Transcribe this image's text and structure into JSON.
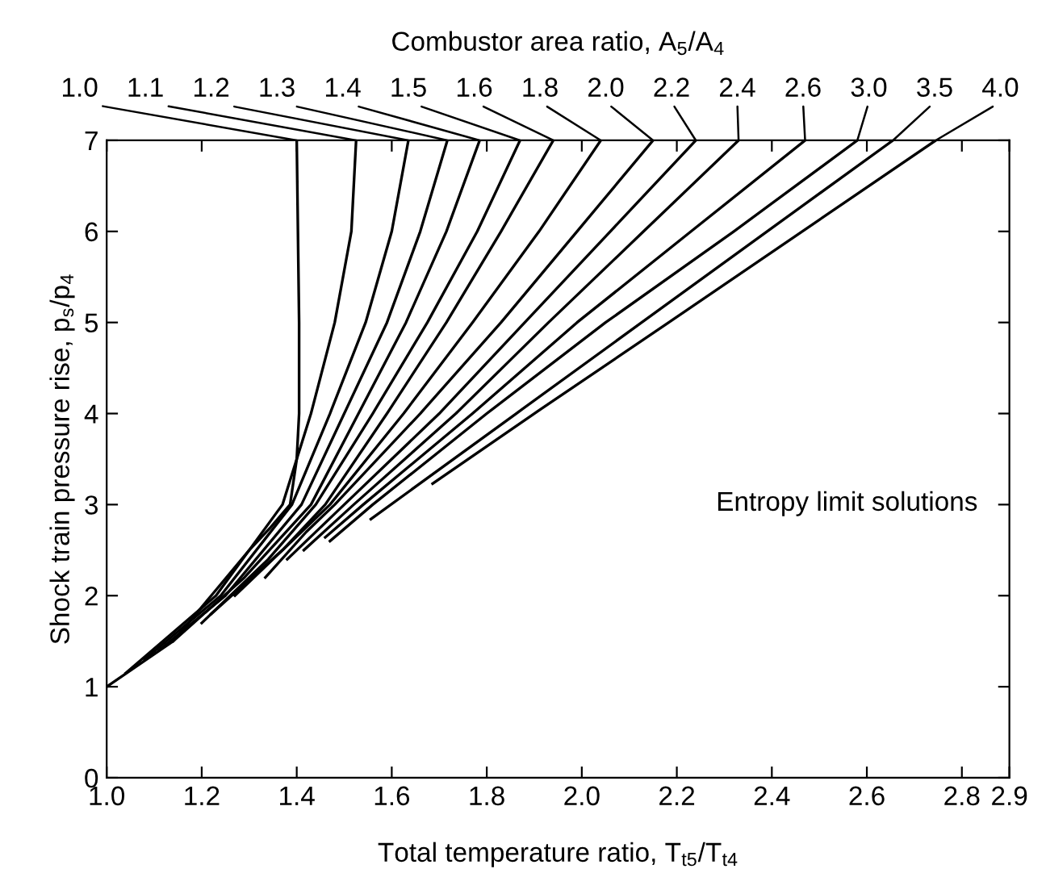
{
  "chart_data": {
    "type": "line",
    "title": "Combustor area ratio, A$_{5}$/A$_{4}$",
    "xlabel": "Total temperature ratio, T$_{t5}$/T$_{t4}$",
    "ylabel": "Shock train pressure rise, p$_{s}$/p$_{4}$",
    "annotations": [
      "Entropy limit solutions"
    ],
    "xlim": [
      1.0,
      2.9
    ],
    "xticks": [
      {
        "value": 1.0,
        "label": "1.0"
      },
      {
        "value": 1.2,
        "label": "1.2"
      },
      {
        "value": 1.4,
        "label": "1.4"
      },
      {
        "value": 1.6,
        "label": "1.6"
      },
      {
        "value": 1.8,
        "label": "1.8"
      },
      {
        "value": 2.0,
        "label": "2.0"
      },
      {
        "value": 2.2,
        "label": "2.2"
      },
      {
        "value": 2.4,
        "label": "2.4"
      },
      {
        "value": 2.6,
        "label": "2.6"
      },
      {
        "value": 2.8,
        "label": "2.8"
      },
      2.9
    ],
    "ylim": [
      0,
      7
    ],
    "yticks": [
      0,
      1,
      2,
      3,
      4,
      5,
      6,
      7
    ],
    "grid": false,
    "legend": false,
    "marker": "none",
    "line_style": "solid",
    "series": [
      {
        "name": "1.0",
        "color": "#000000",
        "x": [
          1.0,
          1.14,
          1.22,
          1.3,
          1.345,
          1.386,
          1.4,
          1.405,
          1.405,
          1.4
        ],
        "values": [
          1,
          1.5,
          2,
          2.5,
          2.75,
          3,
          3.5,
          4,
          5,
          7
        ]
      },
      {
        "name": "1.1",
        "color": "#000000",
        "x": [
          1.04,
          1.23,
          1.37,
          1.43,
          1.48,
          1.515,
          1.525
        ],
        "values": [
          1.15,
          2,
          3,
          4,
          5,
          6,
          7
        ]
      },
      {
        "name": "1.2",
        "color": "#000000",
        "x": [
          1.08,
          1.24,
          1.39,
          1.47,
          1.545,
          1.6,
          1.635
        ],
        "values": [
          1.3,
          2,
          3,
          4,
          5,
          6,
          7
        ]
      },
      {
        "name": "1.3",
        "color": "#000000",
        "x": [
          1.11,
          1.25,
          1.41,
          1.5,
          1.59,
          1.66,
          1.717
        ],
        "values": [
          1.4,
          2,
          3,
          4,
          5,
          6,
          7
        ]
      },
      {
        "name": "1.4",
        "color": "#000000",
        "x": [
          1.14,
          1.29,
          1.43,
          1.53,
          1.63,
          1.715,
          1.785
        ],
        "values": [
          1.5,
          2.2,
          3,
          4,
          5,
          6,
          7
        ]
      },
      {
        "name": "1.5",
        "color": "#000000",
        "x": [
          1.2,
          1.34,
          1.44,
          1.56,
          1.675,
          1.78,
          1.87
        ],
        "values": [
          1.7,
          2.4,
          3,
          4,
          5,
          6,
          7
        ]
      },
      {
        "name": "1.6",
        "color": "#000000",
        "x": [
          1.22,
          1.37,
          1.46,
          1.59,
          1.715,
          1.83,
          1.94
        ],
        "values": [
          1.8,
          2.5,
          3,
          4,
          5,
          6,
          7
        ]
      },
      {
        "name": "1.8",
        "color": "#000000",
        "x": [
          1.27,
          1.39,
          1.47,
          1.625,
          1.77,
          1.91,
          2.04
        ],
        "values": [
          2.0,
          2.6,
          3,
          4,
          5,
          6,
          7
        ]
      },
      {
        "name": "2.0",
        "color": "#000000",
        "x": [
          1.334,
          1.42,
          1.48,
          1.66,
          1.83,
          1.99,
          2.15
        ],
        "values": [
          2.2,
          2.7,
          3,
          4,
          5,
          6,
          7
        ]
      },
      {
        "name": "2.2",
        "color": "#000000",
        "x": [
          1.38,
          1.5,
          1.7,
          1.88,
          2.06,
          2.24
        ],
        "values": [
          2.4,
          3,
          4,
          5,
          6,
          7
        ]
      },
      {
        "name": "2.4",
        "color": "#000000",
        "x": [
          1.415,
          1.52,
          1.735,
          1.93,
          2.13,
          2.33
        ],
        "values": [
          2.5,
          3,
          4,
          5,
          6,
          7
        ]
      },
      {
        "name": "2.6",
        "color": "#000000",
        "x": [
          1.46,
          1.54,
          1.77,
          1.99,
          2.23,
          2.47
        ],
        "values": [
          2.64,
          3,
          4,
          5,
          6,
          7
        ]
      },
      {
        "name": "3.0",
        "color": "#000000",
        "x": [
          1.47,
          1.56,
          1.8,
          2.05,
          2.32,
          2.58
        ],
        "values": [
          2.6,
          3,
          4,
          5,
          6,
          7
        ]
      },
      {
        "name": "3.5",
        "color": "#000000",
        "x": [
          1.556,
          1.862,
          2.126,
          2.39,
          2.655
        ],
        "values": [
          2.84,
          4,
          5,
          6,
          7
        ]
      },
      {
        "name": "4.0",
        "color": "#000000",
        "x": [
          1.686,
          1.9,
          2.183,
          2.464,
          2.745
        ],
        "values": [
          3.23,
          4,
          5,
          6,
          7
        ]
      }
    ]
  }
}
